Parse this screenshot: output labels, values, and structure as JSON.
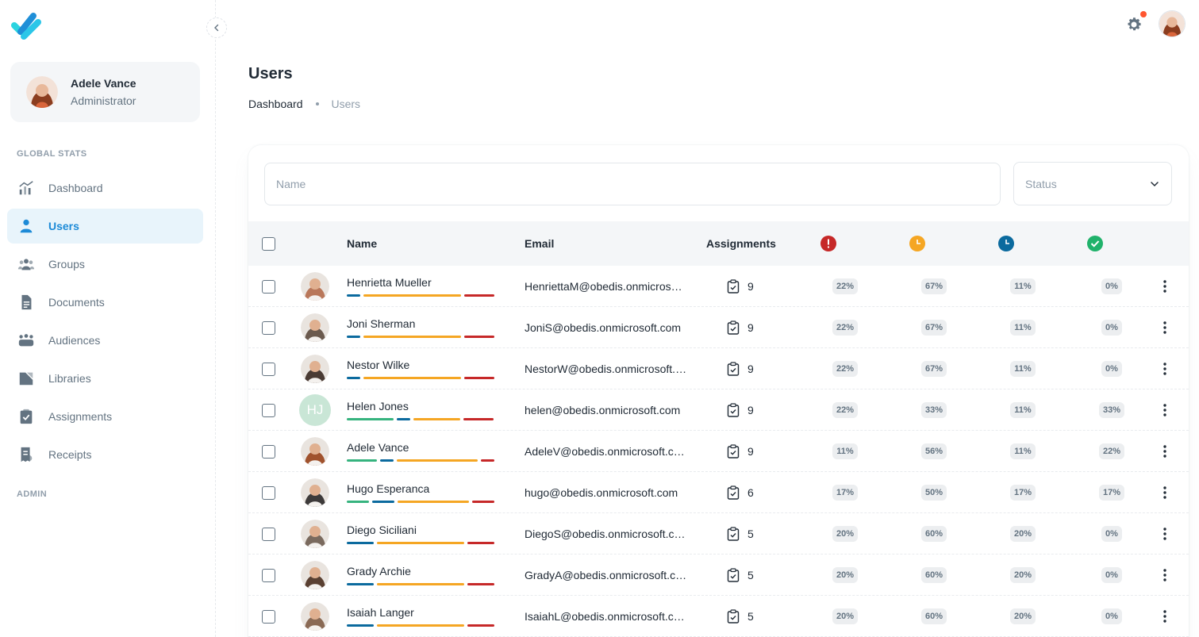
{
  "account": {
    "name": "Adele Vance",
    "role": "Administrator"
  },
  "sections": {
    "global": "GLOBAL STATS",
    "admin": "ADMIN"
  },
  "nav": [
    {
      "label": "Dashboard",
      "icon": "chart-icon",
      "active": false
    },
    {
      "label": "Users",
      "icon": "user-icon",
      "active": true
    },
    {
      "label": "Groups",
      "icon": "groups-icon",
      "active": false
    },
    {
      "label": "Documents",
      "icon": "document-icon",
      "active": false
    },
    {
      "label": "Audiences",
      "icon": "audiences-icon",
      "active": false
    },
    {
      "label": "Libraries",
      "icon": "library-icon",
      "active": false
    },
    {
      "label": "Assignments",
      "icon": "clipboard-check-icon",
      "active": false
    },
    {
      "label": "Receipts",
      "icon": "receipt-icon",
      "active": false
    }
  ],
  "page": {
    "title": "Users"
  },
  "breadcrumb": {
    "home": "Dashboard",
    "current": "Users"
  },
  "filters": {
    "name_placeholder": "Name",
    "status_placeholder": "Status"
  },
  "table": {
    "headers": {
      "name": "Name",
      "email": "Email",
      "assignments": "Assignments"
    },
    "status_icons": [
      {
        "name": "overdue-icon",
        "color": "#c62828"
      },
      {
        "name": "pending-icon",
        "color": "#f5a623"
      },
      {
        "name": "in-progress-icon",
        "color": "#0b6a9e"
      },
      {
        "name": "completed-icon",
        "color": "#20b26b"
      }
    ],
    "bar_colors": {
      "green": "#36b37e",
      "blue": "#0b6a9e",
      "orange": "#f5a623",
      "red": "#c62828"
    },
    "rows": [
      {
        "name": "Henrietta Mueller",
        "email": "HenriettaM@obedis.onmicrosoft.com",
        "assignments": "9",
        "p1": "22%",
        "p2": "67%",
        "p3": "11%",
        "p4": "0%",
        "bars": [
          [
            "blue",
            0.11
          ],
          [
            "orange",
            0.67
          ],
          [
            "red",
            0.22
          ]
        ],
        "avatar": "photo",
        "hue": "#b9775a"
      },
      {
        "name": "Joni Sherman",
        "email": "JoniS@obedis.onmicrosoft.com",
        "assignments": "9",
        "p1": "22%",
        "p2": "67%",
        "p3": "11%",
        "p4": "0%",
        "bars": [
          [
            "blue",
            0.11
          ],
          [
            "orange",
            0.67
          ],
          [
            "red",
            0.22
          ]
        ],
        "avatar": "photo",
        "hue": "#6b5a4e"
      },
      {
        "name": "Nestor Wilke",
        "email": "NestorW@obedis.onmicrosoft.com",
        "assignments": "9",
        "p1": "22%",
        "p2": "67%",
        "p3": "11%",
        "p4": "0%",
        "bars": [
          [
            "blue",
            0.11
          ],
          [
            "orange",
            0.67
          ],
          [
            "red",
            0.22
          ]
        ],
        "avatar": "photo",
        "hue": "#4a3b34"
      },
      {
        "name": "Helen Jones",
        "email": "helen@obedis.onmicrosoft.com",
        "assignments": "9",
        "p1": "22%",
        "p2": "33%",
        "p3": "11%",
        "p4": "33%",
        "bars": [
          [
            "green",
            0.33
          ],
          [
            "blue",
            0.11
          ],
          [
            "orange",
            0.33
          ],
          [
            "red",
            0.22
          ]
        ],
        "avatar": "initials",
        "initials": "HJ"
      },
      {
        "name": "Adele Vance",
        "email": "AdeleV@obedis.onmicrosoft.com",
        "assignments": "9",
        "p1": "11%",
        "p2": "56%",
        "p3": "11%",
        "p4": "22%",
        "bars": [
          [
            "green",
            0.22
          ],
          [
            "blue",
            0.11
          ],
          [
            "orange",
            0.56
          ],
          [
            "red",
            0.11
          ]
        ],
        "avatar": "photo",
        "hue": "#a0522d"
      },
      {
        "name": "Hugo Esperanca",
        "email": "hugo@obedis.onmicrosoft.com",
        "assignments": "6",
        "p1": "17%",
        "p2": "50%",
        "p3": "17%",
        "p4": "17%",
        "bars": [
          [
            "green",
            0.17
          ],
          [
            "blue",
            0.17
          ],
          [
            "orange",
            0.5
          ],
          [
            "red",
            0.17
          ]
        ],
        "avatar": "photo",
        "hue": "#3d3a3a"
      },
      {
        "name": "Diego Siciliani",
        "email": "DiegoS@obedis.onmicrosoft.com",
        "assignments": "5",
        "p1": "20%",
        "p2": "60%",
        "p3": "20%",
        "p4": "0%",
        "bars": [
          [
            "blue",
            0.2
          ],
          [
            "orange",
            0.6
          ],
          [
            "red",
            0.2
          ]
        ],
        "avatar": "photo",
        "hue": "#7a6a5e"
      },
      {
        "name": "Grady Archie",
        "email": "GradyA@obedis.onmicrosoft.com",
        "assignments": "5",
        "p1": "20%",
        "p2": "60%",
        "p3": "20%",
        "p4": "0%",
        "bars": [
          [
            "blue",
            0.2
          ],
          [
            "orange",
            0.6
          ],
          [
            "red",
            0.2
          ]
        ],
        "avatar": "photo",
        "hue": "#5a4032"
      },
      {
        "name": "Isaiah Langer",
        "email": "IsaiahL@obedis.onmicrosoft.com",
        "assignments": "5",
        "p1": "20%",
        "p2": "60%",
        "p3": "20%",
        "p4": "0%",
        "bars": [
          [
            "blue",
            0.2
          ],
          [
            "orange",
            0.6
          ],
          [
            "red",
            0.2
          ]
        ],
        "avatar": "photo",
        "hue": "#8a6a55"
      }
    ]
  }
}
